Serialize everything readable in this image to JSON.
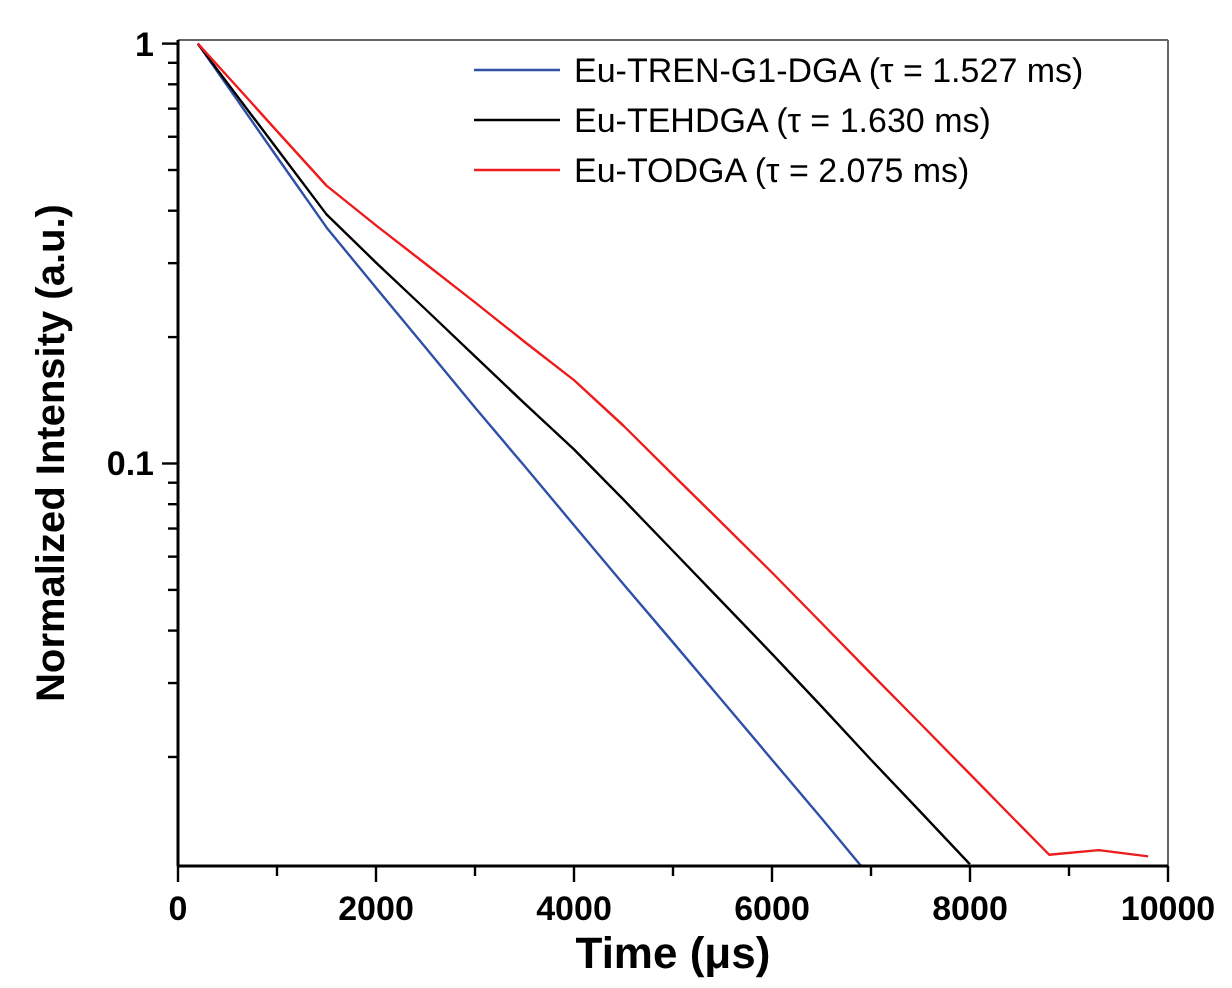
{
  "chart_data": {
    "type": "line",
    "xlabel": "Time (μs)",
    "ylabel": "Normalized Intensity (a.u.)",
    "log": "y",
    "xlim": [
      0,
      10000
    ],
    "ylim": [
      0.011,
      1.02
    ],
    "xticks": [
      0,
      {
        "value": 1000,
        "label": null
      },
      2000,
      {
        "value": 3000,
        "label": null
      },
      4000,
      {
        "value": 5000,
        "label": null
      },
      6000,
      {
        "value": 7000,
        "label": null
      },
      8000,
      {
        "value": 9000,
        "label": null
      },
      10000
    ],
    "yticks": [
      {
        "value": 0.02,
        "label": null
      },
      {
        "value": 0.03,
        "label": null
      },
      {
        "value": 0.04,
        "label": null
      },
      {
        "value": 0.05,
        "label": null
      },
      {
        "value": 0.06,
        "label": null
      },
      {
        "value": 0.07,
        "label": null
      },
      {
        "value": 0.08,
        "label": null
      },
      {
        "value": 0.09,
        "label": null
      },
      0.1,
      {
        "value": 0.2,
        "label": null
      },
      {
        "value": 0.3,
        "label": null
      },
      {
        "value": 0.4,
        "label": null
      },
      {
        "value": 0.5,
        "label": null
      },
      {
        "value": 0.6,
        "label": null
      },
      {
        "value": 0.7,
        "label": null
      },
      {
        "value": 0.8,
        "label": null
      },
      {
        "value": 0.9,
        "label": null
      },
      1
    ],
    "legend": "top right",
    "grid": false,
    "marker": "none",
    "line_style": "solid",
    "series": [
      {
        "name": "Eu-TREN-G1-DGA (τ = 1.527 ms)",
        "color": "#2f4fa8",
        "x": [
          200,
          500,
          1000,
          1500,
          2000,
          2500,
          3000,
          3500,
          4000,
          4500,
          5000,
          5500,
          6000,
          6500,
          6900
        ],
        "values": [
          1,
          0.792,
          0.537,
          0.365,
          0.262,
          0.189,
          0.136,
          0.0986,
          0.0713,
          0.0516,
          0.0375,
          0.0272,
          0.0197,
          0.0143,
          0.011
        ]
      },
      {
        "name": "Eu-TEHDGA (τ = 1.630 ms)",
        "color": "#000000",
        "x": [
          200,
          500,
          1000,
          1500,
          2000,
          2500,
          3000,
          3500,
          4000,
          4500,
          5000,
          5500,
          6000,
          6500,
          7000,
          7500,
          8000
        ],
        "values": [
          1,
          0.805,
          0.562,
          0.392,
          0.301,
          0.233,
          0.18,
          0.139,
          0.108,
          0.082,
          0.0619,
          0.0467,
          0.0352,
          0.0264,
          0.0197,
          0.0148,
          0.0111
        ]
      },
      {
        "name": "Eu-TODGA (τ = 2.075 ms)",
        "color": "#ee1c1c",
        "x": [
          200,
          500,
          1000,
          1500,
          2000,
          2500,
          3000,
          3500,
          4000,
          4500,
          5000,
          5500,
          6000,
          6500,
          7000,
          7500,
          8000,
          8500,
          8800,
          9300,
          9800
        ],
        "values": [
          1,
          0.836,
          0.619,
          0.459,
          0.369,
          0.299,
          0.242,
          0.195,
          0.158,
          0.123,
          0.094,
          0.0719,
          0.055,
          0.0417,
          0.0316,
          0.024,
          0.0182,
          0.0138,
          0.0117,
          0.012,
          0.0116
        ]
      }
    ]
  }
}
